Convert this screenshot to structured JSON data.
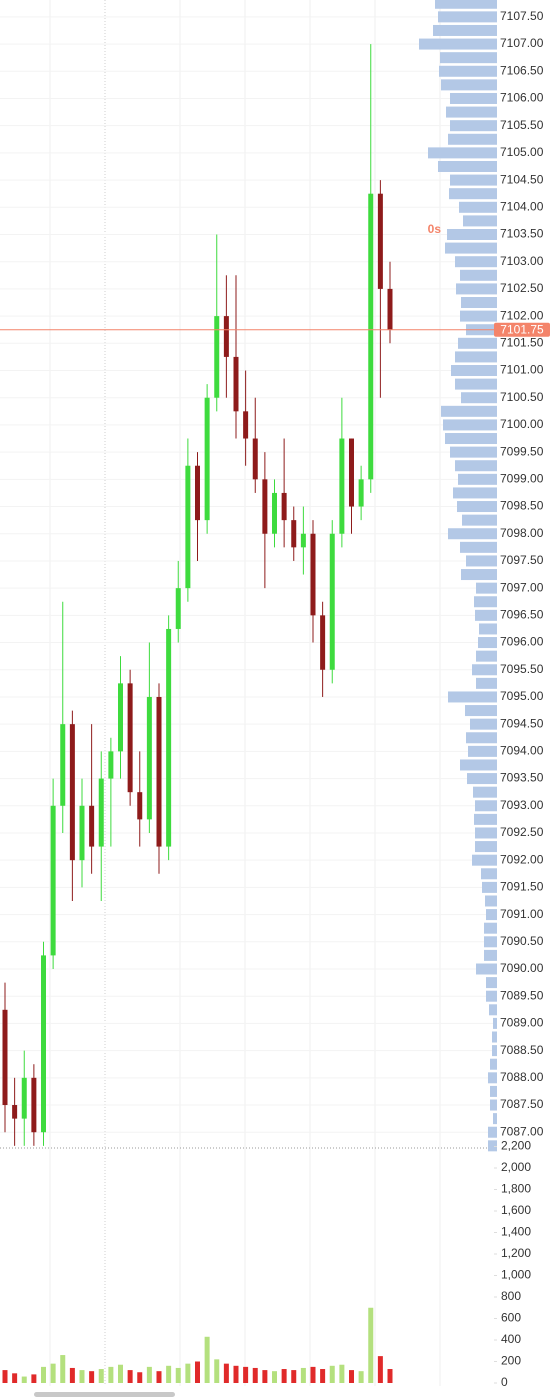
{
  "chart_data": [
    {
      "type": "candlestick",
      "open": [
        7089.25,
        7087.5,
        7087.25,
        7088.0,
        7087.0,
        7090.25,
        7093.0,
        7094.5,
        7092.0,
        7093.0,
        7092.25,
        7093.5,
        7094.0,
        7095.25,
        7093.25,
        7092.75,
        7095.0,
        7092.25,
        7096.25,
        7097.0,
        7099.25,
        7098.25,
        7100.5,
        7102.0,
        7101.25,
        7100.25,
        7099.75,
        7099.0,
        7098.0,
        7098.75,
        7098.25,
        7097.75,
        7098.0,
        7096.5,
        7095.5,
        7098.0,
        7099.75,
        7098.5,
        7099.0,
        7104.25,
        7102.5
      ],
      "high": [
        7089.75,
        7088.0,
        7088.5,
        7088.25,
        7090.5,
        7093.5,
        7096.75,
        7094.75,
        7093.5,
        7094.5,
        7094.0,
        7094.25,
        7095.75,
        7095.5,
        7094.0,
        7096.0,
        7095.25,
        7096.5,
        7097.5,
        7099.75,
        7099.5,
        7100.75,
        7103.5,
        7102.75,
        7102.75,
        7101.0,
        7100.5,
        7099.5,
        7099.0,
        7099.75,
        7098.5,
        7098.5,
        7098.25,
        7096.75,
        7098.25,
        7100.5,
        7099.75,
        7099.25,
        7107.0,
        7104.5,
        7103.0
      ],
      "low": [
        7087.0,
        7086.75,
        7086.75,
        7086.75,
        7086.75,
        7090.0,
        7092.5,
        7091.25,
        7091.5,
        7091.75,
        7091.25,
        7092.25,
        7093.5,
        7093.0,
        7092.25,
        7092.5,
        7091.75,
        7092.0,
        7096.0,
        7096.75,
        7097.5,
        7098.0,
        7100.25,
        7100.5,
        7099.75,
        7099.25,
        7098.75,
        7097.0,
        7097.75,
        7097.75,
        7097.5,
        7097.25,
        7096.0,
        7095.0,
        7095.25,
        7097.75,
        7098.0,
        7098.25,
        7098.75,
        7100.5,
        7101.5
      ],
      "close": [
        7087.5,
        7087.25,
        7088.0,
        7087.0,
        7090.25,
        7093.0,
        7094.5,
        7092.0,
        7093.0,
        7092.25,
        7093.5,
        7094.0,
        7095.25,
        7093.25,
        7092.75,
        7095.0,
        7092.25,
        7096.25,
        7097.0,
        7099.25,
        7098.25,
        7100.5,
        7102.0,
        7101.25,
        7100.25,
        7099.75,
        7099.0,
        7098.0,
        7098.75,
        7098.25,
        7097.75,
        7098.0,
        7096.5,
        7095.5,
        7098.0,
        7099.75,
        7098.5,
        7099.0,
        7104.25,
        7102.5,
        7101.75
      ],
      "colors": {
        "up": "#3edb3e",
        "down": "#8e1b1b"
      },
      "ylim": [
        7086.71,
        7107.81
      ],
      "yticks": [
        {
          "value": 7107.5,
          "label": "7107.50"
        },
        {
          "value": 7107,
          "label": "7107.00"
        },
        {
          "value": 7106.5,
          "label": "7106.50"
        },
        {
          "value": 7106,
          "label": "7106.00"
        },
        {
          "value": 7105.5,
          "label": "7105.50"
        },
        {
          "value": 7105,
          "label": "7105.00"
        },
        {
          "value": 7104.5,
          "label": "7104.50"
        },
        {
          "value": 7104,
          "label": "7104.00"
        },
        {
          "value": 7103.5,
          "label": "7103.50"
        },
        {
          "value": 7103,
          "label": "7103.00"
        },
        {
          "value": 7102.5,
          "label": "7102.50"
        },
        {
          "value": 7102,
          "label": "7102.00"
        },
        {
          "value": 7101.5,
          "label": "7101.50"
        },
        {
          "value": 7101,
          "label": "7101.00"
        },
        {
          "value": 7100.5,
          "label": "7100.50"
        },
        {
          "value": 7100,
          "label": "7100.00"
        },
        {
          "value": 7099.5,
          "label": "7099.50"
        },
        {
          "value": 7099,
          "label": "7099.00"
        },
        {
          "value": 7098.5,
          "label": "7098.50"
        },
        {
          "value": 7098,
          "label": "7098.00"
        },
        {
          "value": 7097.5,
          "label": "7097.50"
        },
        {
          "value": 7097,
          "label": "7097.00"
        },
        {
          "value": 7096.5,
          "label": "7096.50"
        },
        {
          "value": 7096,
          "label": "7096.00"
        },
        {
          "value": 7095.5,
          "label": "7095.50"
        },
        {
          "value": 7095,
          "label": "7095.00"
        },
        {
          "value": 7094.5,
          "label": "7094.50"
        },
        {
          "value": 7094,
          "label": "7094.00"
        },
        {
          "value": 7093.5,
          "label": "7093.50"
        },
        {
          "value": 7093,
          "label": "7093.00"
        },
        {
          "value": 7092.5,
          "label": "7092.50"
        },
        {
          "value": 7092,
          "label": "7092.00"
        },
        {
          "value": 7091.5,
          "label": "7091.50"
        },
        {
          "value": 7091,
          "label": "7091.00"
        },
        {
          "value": 7090.5,
          "label": "7090.50"
        },
        {
          "value": 7090,
          "label": "7090.00"
        },
        {
          "value": 7089.5,
          "label": "7089.50"
        },
        {
          "value": 7089,
          "label": "7089.00"
        },
        {
          "value": 7088.5,
          "label": "7088.50"
        },
        {
          "value": 7088,
          "label": "7088.00"
        },
        {
          "value": 7087.5,
          "label": "7087.50"
        },
        {
          "value": 7087,
          "label": "7087.00"
        }
      ],
      "grid": true,
      "last_price": 7101.75,
      "last_price_color": "#f4846a",
      "countdown": "0s",
      "volume_profile": {
        "color": "#b3c8e6",
        "prices": [
          7107.75,
          7107.5,
          7107.25,
          7107,
          7106.75,
          7106.5,
          7106.25,
          7106,
          7105.75,
          7105.5,
          7105.25,
          7105,
          7104.75,
          7104.5,
          7104.25,
          7104,
          7103.75,
          7103.5,
          7103.25,
          7103,
          7102.75,
          7102.5,
          7102.25,
          7102,
          7101.75,
          7101.5,
          7101.25,
          7101,
          7100.75,
          7100.5,
          7100.25,
          7100,
          7099.75,
          7099.5,
          7099.25,
          7099,
          7098.75,
          7098.5,
          7098.25,
          7098,
          7097.75,
          7097.5,
          7097.25,
          7097,
          7096.75,
          7096.5,
          7096.25,
          7096,
          7095.75,
          7095.5,
          7095.25,
          7095,
          7094.75,
          7094.5,
          7094.25,
          7094,
          7093.75,
          7093.5,
          7093.25,
          7093,
          7092.75,
          7092.5,
          7092.25,
          7092,
          7091.75,
          7091.5,
          7091.25,
          7091,
          7090.75,
          7090.5,
          7090.25,
          7090,
          7089.75,
          7089.5,
          7089.25,
          7089,
          7088.75,
          7088.5,
          7088.25,
          7088,
          7087.75,
          7087.5,
          7087.25,
          7087,
          7086.75
        ],
        "values": [
          62,
          59,
          64,
          78,
          57,
          58,
          56,
          47,
          51,
          47,
          49,
          69,
          59,
          47,
          48,
          38,
          34,
          50,
          52,
          42,
          37,
          41,
          36,
          37,
          31,
          39,
          42,
          46,
          42,
          36,
          56,
          54,
          52,
          47,
          42,
          39,
          44,
          40,
          35,
          49,
          37,
          31,
          36,
          21,
          23,
          22,
          18,
          19,
          21,
          25,
          21,
          49,
          32,
          27,
          31,
          29,
          37,
          30,
          24,
          22,
          23,
          22,
          22,
          25,
          16,
          15,
          12,
          11,
          13,
          13,
          13,
          21,
          11,
          11,
          8,
          4,
          5,
          5,
          7,
          9,
          7,
          7,
          4,
          9,
          9
        ]
      }
    },
    {
      "type": "bar",
      "values": [
        120,
        90,
        60,
        80,
        150,
        180,
        260,
        140,
        120,
        110,
        130,
        150,
        170,
        120,
        100,
        150,
        110,
        160,
        140,
        180,
        200,
        430,
        220,
        180,
        160,
        150,
        140,
        120,
        110,
        130,
        120,
        140,
        150,
        130,
        160,
        170,
        120,
        110,
        700,
        250,
        130
      ],
      "colors": {
        "up": "#b4e07e",
        "down": "#e02a2a"
      },
      "ylim": [
        0,
        2200
      ],
      "yticks": [
        0,
        200,
        400,
        600,
        800,
        {
          "value": 1000,
          "label": "1,000"
        },
        {
          "value": 1200,
          "label": "1,200"
        },
        {
          "value": 1400,
          "label": "1,400"
        },
        {
          "value": 1600,
          "label": "1,600"
        },
        {
          "value": 1800,
          "label": "1,800"
        },
        {
          "value": 2000,
          "label": "2,000"
        },
        {
          "value": 2200,
          "label": "2,200"
        }
      ]
    }
  ]
}
